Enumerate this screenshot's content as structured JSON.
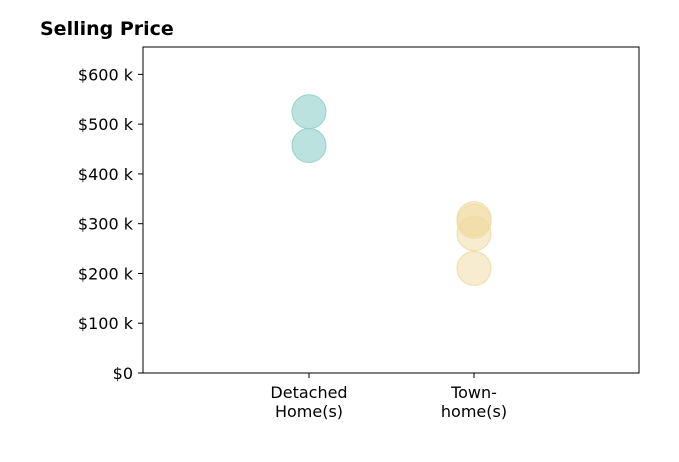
{
  "chart_data": {
    "type": "scatter",
    "title": "Selling Price",
    "xlabel": "",
    "ylabel": "",
    "categories": [
      [
        "Detached",
        "Home(s)"
      ],
      [
        "Town-",
        "home(s)"
      ]
    ],
    "y_ticks": [
      {
        "value": 0,
        "label": "$0"
      },
      {
        "value": 100000,
        "label": "$100 k"
      },
      {
        "value": 200000,
        "label": "$200 k"
      },
      {
        "value": 300000,
        "label": "$300 k"
      },
      {
        "value": 400000,
        "label": "$400 k"
      },
      {
        "value": 500000,
        "label": "$500 k"
      },
      {
        "value": 600000,
        "label": "$600 k"
      }
    ],
    "ylim": [
      0,
      655000
    ],
    "grid": false,
    "series": [
      {
        "category": 0,
        "color": "#8ecfc9",
        "values": [
          525000,
          457000
        ]
      },
      {
        "category": 1,
        "color": "#f0d9a0",
        "values": [
          310000,
          305000,
          280000,
          210000
        ]
      }
    ]
  }
}
